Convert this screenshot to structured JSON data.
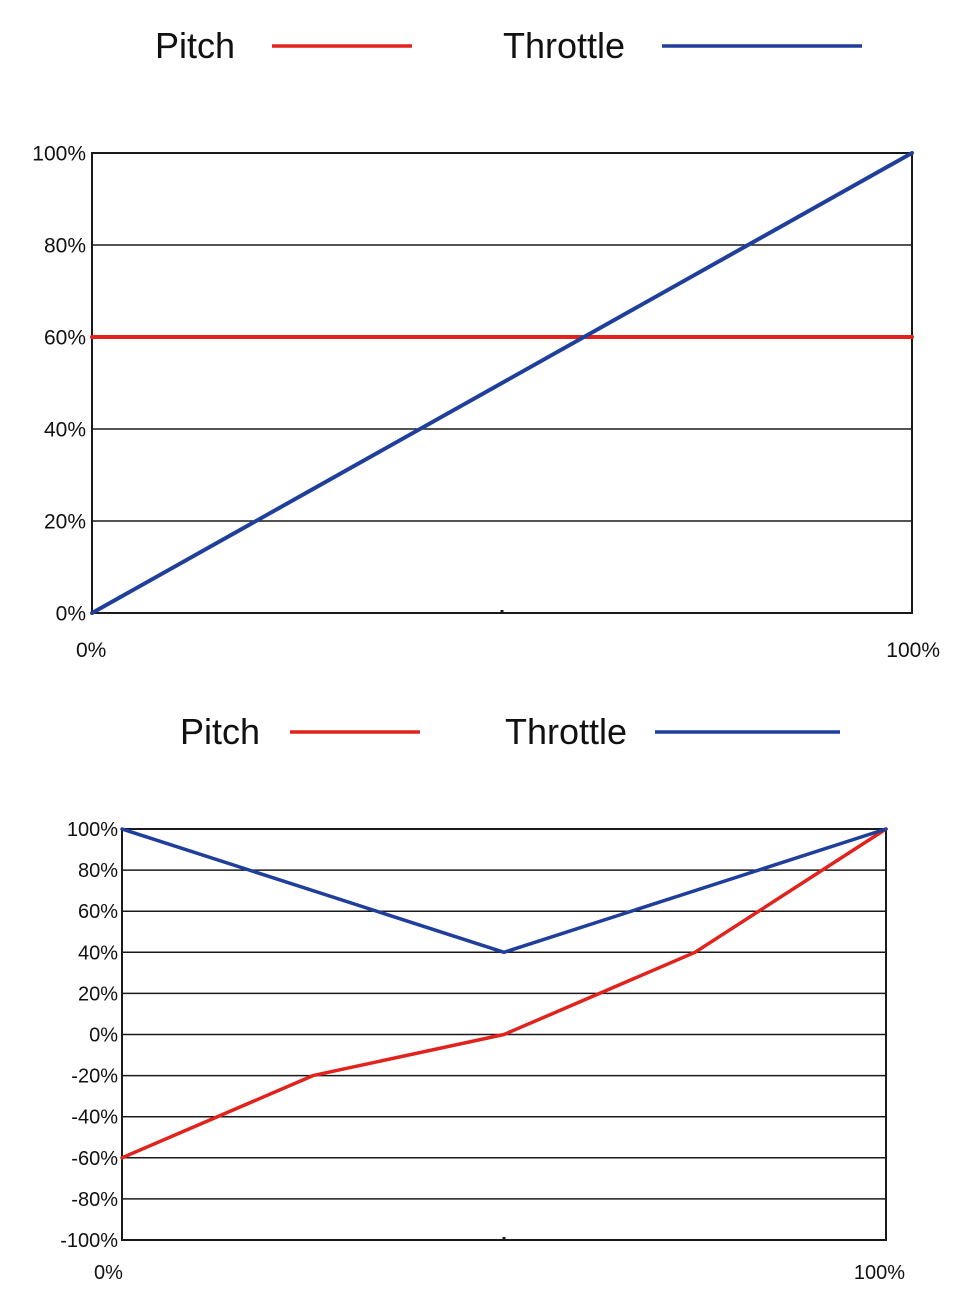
{
  "chart_data": [
    {
      "type": "line",
      "title": "",
      "xlabel": "",
      "ylabel": "",
      "legend": {
        "placement": "top",
        "entries": [
          {
            "label": "Pitch",
            "color": "#e0231c"
          },
          {
            "label": "Throttle",
            "color": "#1f3f9a"
          }
        ]
      },
      "xlim": [
        0,
        100
      ],
      "ylim": [
        0,
        100
      ],
      "x_tick_labels": [
        {
          "value": 0,
          "label": "0%"
        },
        {
          "value": 100,
          "label": "100%"
        }
      ],
      "y_tick_labels": [
        {
          "value": 100,
          "label": "100%"
        },
        {
          "value": 80,
          "label": "80%"
        },
        {
          "value": 60,
          "label": "60%"
        },
        {
          "value": 40,
          "label": "40%"
        },
        {
          "value": 20,
          "label": "20%"
        },
        {
          "value": 0,
          "label": "0%"
        }
      ],
      "grid": {
        "horizontal": true,
        "vertical": false
      },
      "series": [
        {
          "name": "Pitch",
          "color": "#e0231c",
          "x": [
            0,
            100
          ],
          "y": [
            60,
            60
          ]
        },
        {
          "name": "Throttle",
          "color": "#1f3f9a",
          "x": [
            0,
            100
          ],
          "y": [
            0,
            100
          ]
        }
      ]
    },
    {
      "type": "line",
      "title": "",
      "xlabel": "",
      "ylabel": "",
      "legend": {
        "placement": "top",
        "entries": [
          {
            "label": "Pitch",
            "color": "#e0231c"
          },
          {
            "label": "Throttle",
            "color": "#1f3f9a"
          }
        ]
      },
      "xlim": [
        0,
        100
      ],
      "ylim": [
        -100,
        100
      ],
      "x_tick_labels": [
        {
          "value": 0,
          "label": "0%"
        },
        {
          "value": 100,
          "label": "100%"
        }
      ],
      "y_tick_labels": [
        {
          "value": 100,
          "label": "100%"
        },
        {
          "value": 80,
          "label": "80%"
        },
        {
          "value": 60,
          "label": "60%"
        },
        {
          "value": 40,
          "label": "40%"
        },
        {
          "value": 20,
          "label": "20%"
        },
        {
          "value": 0,
          "label": "0%"
        },
        {
          "value": -20,
          "label": "-20%"
        },
        {
          "value": -40,
          "label": "-40%"
        },
        {
          "value": -60,
          "label": "-60%"
        },
        {
          "value": -80,
          "label": "-80%"
        },
        {
          "value": -100,
          "label": "-100%"
        }
      ],
      "grid": {
        "horizontal": true,
        "vertical": false
      },
      "series": [
        {
          "name": "Pitch",
          "color": "#e0231c",
          "x": [
            0,
            25,
            50,
            75,
            100
          ],
          "y": [
            -60,
            -20,
            0,
            40,
            100
          ]
        },
        {
          "name": "Throttle",
          "color": "#1f3f9a",
          "x": [
            0,
            50,
            100
          ],
          "y": [
            100,
            40,
            100
          ]
        }
      ]
    }
  ]
}
